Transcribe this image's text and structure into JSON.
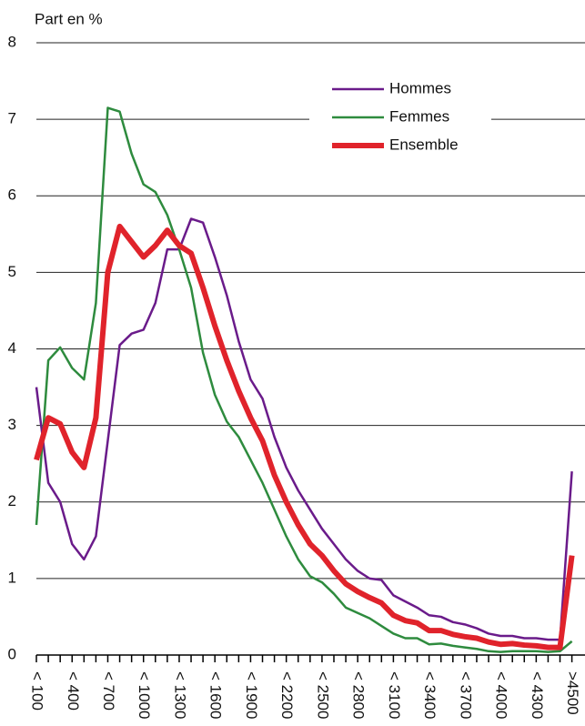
{
  "chart_data": {
    "type": "line",
    "ylabel": "Part en %",
    "categories": [
      "< 100",
      null,
      null,
      "< 400",
      null,
      null,
      "< 700",
      null,
      null,
      "< 1000",
      null,
      null,
      "< 1300",
      null,
      null,
      "< 1600",
      null,
      null,
      "< 1900",
      null,
      null,
      "< 2200",
      null,
      null,
      "< 2500",
      null,
      null,
      "< 2800",
      null,
      null,
      "< 3100",
      null,
      null,
      "< 3400",
      null,
      null,
      "< 3700",
      null,
      null,
      "< 4000",
      null,
      null,
      "< 4300",
      null,
      null,
      ">4500"
    ],
    "series": [
      {
        "name": "Hommes",
        "color": "#6a1b8a",
        "width": 2.5,
        "values": [
          3.5,
          2.25,
          2.0,
          1.45,
          1.25,
          1.55,
          2.8,
          4.05,
          4.2,
          4.25,
          4.6,
          5.3,
          5.3,
          5.7,
          5.65,
          5.2,
          4.7,
          4.1,
          3.6,
          3.35,
          2.85,
          2.45,
          2.15,
          1.9,
          1.65,
          1.45,
          1.25,
          1.1,
          1.0,
          0.98,
          0.78,
          0.7,
          0.62,
          0.52,
          0.5,
          0.43,
          0.4,
          0.35,
          0.28,
          0.25,
          0.25,
          0.22,
          0.22,
          0.2,
          0.2,
          2.4
        ]
      },
      {
        "name": "Femmes",
        "color": "#2e8b3e",
        "width": 2.5,
        "values": [
          1.7,
          3.85,
          4.02,
          3.75,
          3.6,
          4.6,
          7.15,
          7.1,
          6.55,
          6.15,
          6.05,
          5.75,
          5.3,
          4.8,
          3.95,
          3.4,
          3.05,
          2.85,
          2.55,
          2.25,
          1.9,
          1.55,
          1.25,
          1.03,
          0.95,
          0.8,
          0.62,
          0.55,
          0.48,
          0.38,
          0.28,
          0.22,
          0.22,
          0.14,
          0.15,
          0.12,
          0.1,
          0.08,
          0.05,
          0.04,
          0.05,
          0.05,
          0.05,
          0.04,
          0.05,
          0.18
        ]
      },
      {
        "name": "Ensemble",
        "color": "#e0232b",
        "width": 6,
        "values": [
          2.55,
          3.1,
          3.02,
          2.65,
          2.45,
          3.1,
          5.0,
          5.6,
          5.4,
          5.2,
          5.35,
          5.55,
          5.35,
          5.25,
          4.8,
          4.3,
          3.85,
          3.45,
          3.1,
          2.8,
          2.35,
          2.0,
          1.7,
          1.45,
          1.3,
          1.1,
          0.93,
          0.83,
          0.75,
          0.68,
          0.52,
          0.45,
          0.42,
          0.32,
          0.32,
          0.27,
          0.24,
          0.22,
          0.17,
          0.14,
          0.15,
          0.13,
          0.12,
          0.1,
          0.1,
          1.3
        ]
      }
    ],
    "ylim": [
      0,
      8
    ],
    "yticks": [
      0,
      1,
      2,
      3,
      4,
      5,
      6,
      7,
      8
    ],
    "grid": true
  }
}
